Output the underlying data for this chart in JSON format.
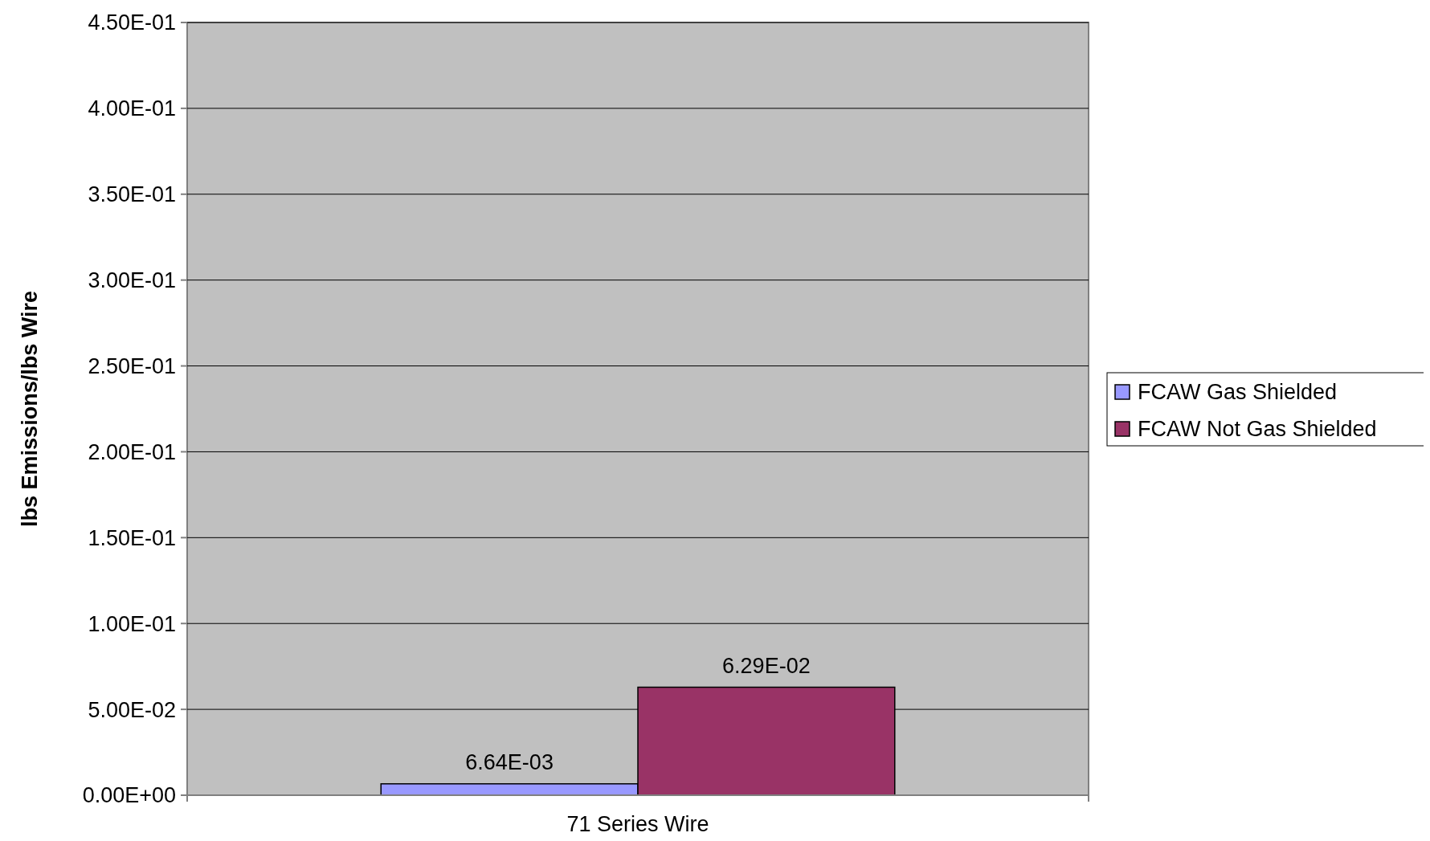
{
  "chart_data": {
    "type": "bar",
    "ylabel": "lbs Emissions/lbs Wire",
    "categories": [
      "71 Series Wire"
    ],
    "series": [
      {
        "name": "FCAW Gas Shielded",
        "color": "#9999ff",
        "values": [
          0.00664
        ],
        "value_labels": [
          "6.64E-03"
        ]
      },
      {
        "name": "FCAW Not Gas Shielded",
        "color": "#993366",
        "values": [
          0.0629
        ],
        "value_labels": [
          "6.29E-02"
        ]
      }
    ],
    "ylim": [
      0,
      0.45
    ],
    "yticks": [
      {
        "value": 0,
        "label": "0.00E+00"
      },
      {
        "value": 0.05,
        "label": "5.00E-02"
      },
      {
        "value": 0.1,
        "label": "1.00E-01"
      },
      {
        "value": 0.15,
        "label": "1.50E-01"
      },
      {
        "value": 0.2,
        "label": "2.00E-01"
      },
      {
        "value": 0.25,
        "label": "2.50E-01"
      },
      {
        "value": 0.3,
        "label": "3.00E-01"
      },
      {
        "value": 0.35,
        "label": "3.50E-01"
      },
      {
        "value": 0.4,
        "label": "4.00E-01"
      },
      {
        "value": 0.45,
        "label": "4.50E-01"
      }
    ],
    "grid": "y",
    "legend": "right"
  }
}
